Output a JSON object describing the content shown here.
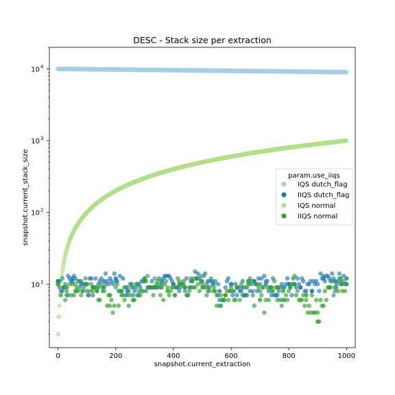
{
  "chart_data": {
    "type": "scatter",
    "title": "DESC - Stack size per extraction",
    "xlabel": "snapshot.current_extraction",
    "ylabel": "snapshot.current_stack_size",
    "xlim": [
      -30,
      1030
    ],
    "ylim": [
      1.3,
      20000
    ],
    "yscale": "log",
    "x_ticks": [
      0,
      200,
      400,
      600,
      800,
      1000
    ],
    "y_ticks": [
      {
        "value": 10,
        "base": "10",
        "exp": "1"
      },
      {
        "value": 100,
        "base": "10",
        "exp": "2"
      },
      {
        "value": 1000,
        "base": "10",
        "exp": "3"
      },
      {
        "value": 10000,
        "base": "10",
        "exp": "4"
      }
    ],
    "grid": false,
    "legend": {
      "title": "param.use_iiqs",
      "position": "right"
    },
    "series": [
      {
        "name": "IQS dutch_flag",
        "color": "#a6cee3",
        "description": "stack size decreasing linearly from 10000 to about 9000 over extractions 0-1000",
        "x": [
          0,
          100,
          200,
          300,
          400,
          500,
          600,
          700,
          800,
          900,
          1000
        ],
        "y": [
          10000,
          9900,
          9800,
          9700,
          9600,
          9500,
          9400,
          9300,
          9200,
          9100,
          9000
        ]
      },
      {
        "name": "IIQS dutch_flag",
        "color": "#1f78b4",
        "x": [
          0,
          20,
          50,
          80,
          120,
          160,
          200,
          240,
          280,
          320,
          360,
          400,
          440,
          480,
          520,
          560,
          600,
          640,
          680,
          720,
          760,
          800,
          840,
          880,
          920,
          960,
          1000
        ],
        "y": [
          11,
          9,
          12,
          10,
          9,
          11,
          12,
          8,
          10,
          9,
          11,
          10,
          9,
          12,
          11,
          8,
          10,
          9,
          11,
          10,
          9,
          10,
          9,
          8,
          12,
          11,
          12
        ]
      },
      {
        "name": "IQS normal",
        "color": "#b2df8a",
        "description": "stack size growing from 2 to 1000 as extraction goes 0 to 1000",
        "x": [
          1,
          5,
          10,
          20,
          40,
          60,
          100,
          150,
          200,
          300,
          400,
          500,
          600,
          700,
          800,
          900,
          1000
        ],
        "y": [
          2,
          5,
          10,
          20,
          40,
          60,
          100,
          150,
          200,
          300,
          400,
          500,
          600,
          700,
          800,
          900,
          1000
        ]
      },
      {
        "name": "IIQS normal",
        "color": "#33a02c",
        "x": [
          0,
          30,
          60,
          100,
          140,
          180,
          220,
          260,
          300,
          340,
          380,
          420,
          460,
          500,
          540,
          580,
          620,
          660,
          700,
          740,
          780,
          820,
          860,
          900,
          940,
          980
        ],
        "y": [
          10,
          9,
          8,
          10,
          9,
          7,
          8,
          6,
          11,
          9,
          8,
          10,
          9,
          11,
          8,
          7,
          9,
          10,
          6,
          9,
          8,
          10,
          7,
          3,
          9,
          10
        ]
      }
    ]
  }
}
